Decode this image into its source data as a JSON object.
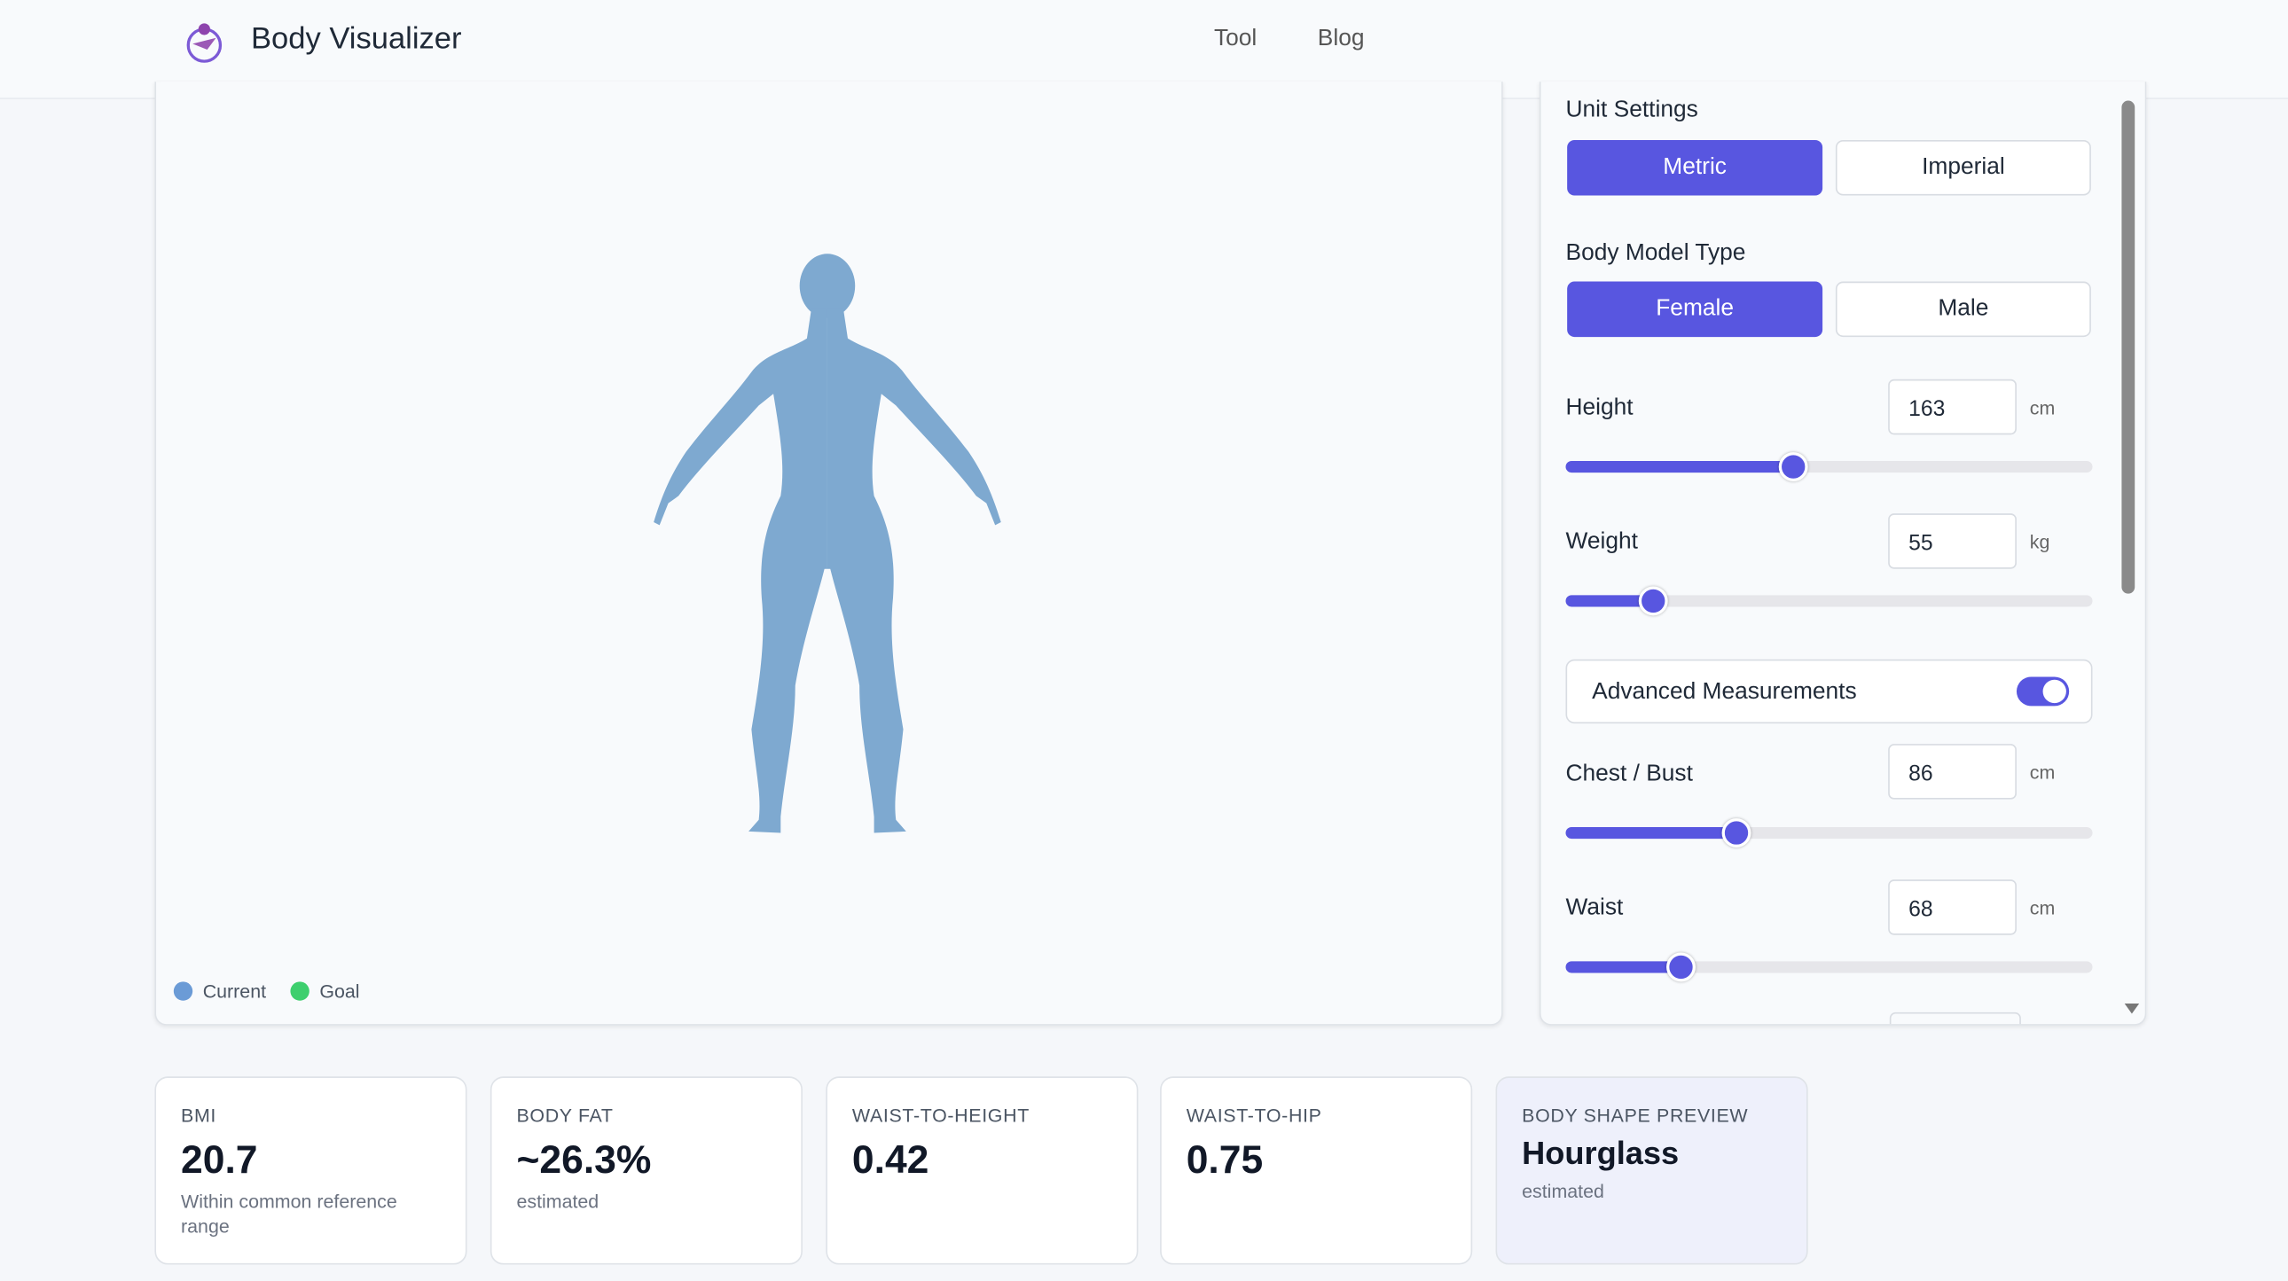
{
  "header": {
    "brand": "Body Visualizer",
    "nav": [
      "Tool",
      "Blog"
    ]
  },
  "viewer": {
    "legend": [
      "Current",
      "Goal"
    ]
  },
  "settings": {
    "unit_title": "Unit Settings",
    "unit_options": [
      "Metric",
      "Imperial"
    ],
    "model_title": "Body Model Type",
    "model_options": [
      "Female",
      "Male"
    ],
    "fields": [
      {
        "label": "Height",
        "value": "163",
        "unit": "cm"
      },
      {
        "label": "Weight",
        "value": "55",
        "unit": "kg"
      }
    ],
    "advanced": "Advanced Measurements",
    "advanced_fields": [
      {
        "label": "Chest / Bust",
        "value": "86",
        "unit": "cm"
      },
      {
        "label": "Waist",
        "value": "68",
        "unit": "cm"
      }
    ]
  },
  "cards": [
    {
      "title": "BMI",
      "value": "20.7",
      "note": "Within common reference range"
    },
    {
      "title": "BODY FAT",
      "value": "~26.3%",
      "note": "estimated"
    },
    {
      "title": "WAIST-TO-HEIGHT",
      "value": "0.42"
    },
    {
      "title": "WAIST-TO-HIP",
      "value": "0.75"
    },
    {
      "title": "BODY SHAPE PREVIEW",
      "value": "Hourglass",
      "note": "estimated"
    }
  ]
}
